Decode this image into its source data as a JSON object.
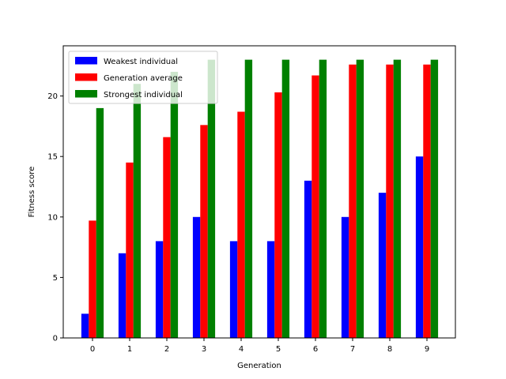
{
  "chart_data": {
    "type": "bar",
    "title": "",
    "xlabel": "Generation",
    "ylabel": "Fitness score",
    "categories": [
      "0",
      "1",
      "2",
      "3",
      "4",
      "5",
      "6",
      "7",
      "8",
      "9"
    ],
    "series": [
      {
        "name": "Weakest individual",
        "color": "#0000ff",
        "values": [
          2,
          7,
          8,
          10,
          8,
          8,
          13,
          10,
          12,
          15
        ]
      },
      {
        "name": "Generation average",
        "color": "#ff0000",
        "values": [
          9.7,
          14.5,
          16.6,
          17.6,
          18.7,
          20.3,
          21.7,
          22.6,
          22.6,
          22.6
        ]
      },
      {
        "name": "Strongest individual",
        "color": "#008000",
        "values": [
          19,
          21,
          22,
          23,
          23,
          23,
          23,
          23,
          23,
          23
        ]
      }
    ],
    "ylim": [
      0,
      24.15
    ],
    "yticks": [
      "0",
      "5",
      "10",
      "15",
      "20"
    ],
    "grid": false,
    "legend": "top-left"
  }
}
